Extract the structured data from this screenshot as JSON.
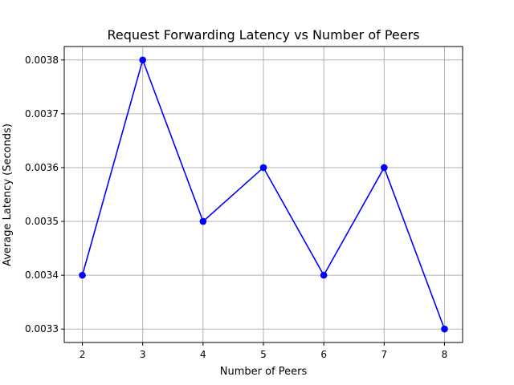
{
  "chart_data": {
    "type": "line",
    "title": "Request Forwarding Latency vs Number of Peers",
    "xlabel": "Number of Peers",
    "ylabel": "Average Latency (Seconds)",
    "x": [
      2,
      3,
      4,
      5,
      6,
      7,
      8
    ],
    "series": [
      {
        "values": [
          0.0034,
          0.0038,
          0.0035,
          0.0036,
          0.0034,
          0.0036,
          0.0033
        ],
        "color": "#0000ff",
        "marker": "circle"
      }
    ],
    "x_ticks": [
      "2",
      "3",
      "4",
      "5",
      "6",
      "7",
      "8"
    ],
    "y_ticks": [
      "0.0033",
      "0.0034",
      "0.0035",
      "0.0036",
      "0.0037",
      "0.0038"
    ],
    "xlim": [
      1.7,
      8.3
    ],
    "ylim": [
      0.003275,
      0.003825
    ],
    "grid": true,
    "legend": "none"
  }
}
